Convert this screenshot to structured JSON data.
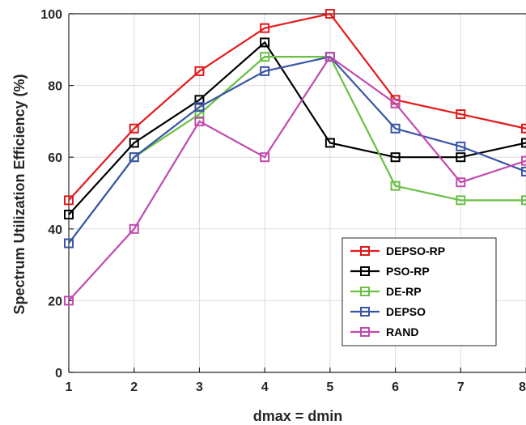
{
  "chart_data": {
    "type": "line",
    "xlabel": "dmax = dmin",
    "ylabel": "Spectrum Utilization Efficiency (%)",
    "x": [
      1,
      2,
      3,
      4,
      5,
      6,
      7,
      8
    ],
    "xlim": [
      1,
      8
    ],
    "ylim": [
      0,
      100
    ],
    "xticks": [
      "1",
      "2",
      "3",
      "4",
      "5",
      "6",
      "7",
      "8"
    ],
    "yticks": [
      "0",
      "20",
      "40",
      "60",
      "80",
      "100"
    ],
    "grid": true,
    "legend_position": "bottom-right",
    "marker": "square",
    "series": [
      {
        "name": "DEPSO-RP",
        "color": "#e31a1c",
        "values": [
          48,
          68,
          84,
          96,
          100,
          76,
          72,
          68
        ]
      },
      {
        "name": "PSO-RP",
        "color": "#000000",
        "values": [
          44,
          64,
          76,
          92,
          64,
          60,
          60,
          64
        ]
      },
      {
        "name": "DE-RP",
        "color": "#6abf45",
        "values": [
          36,
          60,
          72,
          88,
          88,
          52,
          48,
          48
        ]
      },
      {
        "name": "DEPSO",
        "color": "#3a55a4",
        "values": [
          36,
          60,
          74,
          84,
          88,
          68,
          63,
          56
        ]
      },
      {
        "name": "RAND",
        "color": "#c04aae",
        "values": [
          20,
          40,
          70,
          60,
          88,
          75,
          53,
          59
        ]
      }
    ]
  }
}
